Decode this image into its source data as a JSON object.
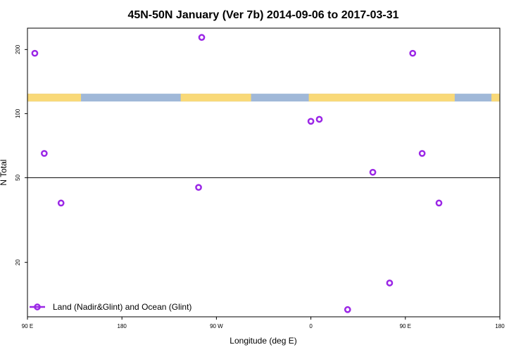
{
  "chart_data": {
    "type": "scatter",
    "title": "45N-50N January (Ver 7b)   2014-09-06 to 2017-03-31",
    "xlabel": "Longitude (deg E)",
    "ylabel": "N Total",
    "ylog": true,
    "xlim": [
      90,
      540
    ],
    "ylim": [
      11.1,
      252
    ],
    "xticks": [
      {
        "value": 90,
        "label": "90 E"
      },
      {
        "value": 180,
        "label": "180"
      },
      {
        "value": 270,
        "label": "90 W"
      },
      {
        "value": 360,
        "label": "0"
      },
      {
        "value": 450,
        "label": "90 E"
      },
      {
        "value": 540,
        "label": "180"
      }
    ],
    "yticks": [
      {
        "value": 20,
        "label": "20"
      },
      {
        "value": 50,
        "label": "50"
      },
      {
        "value": 100,
        "label": "100"
      },
      {
        "value": 200,
        "label": "200"
      }
    ],
    "reference_line": 50,
    "colors": {
      "marker": "#9b27e6",
      "land": "#f9d978",
      "ocean": "#a0b8d8"
    },
    "land_ocean_band": {
      "y_low": 114,
      "y_high": 124,
      "land_intervals": [
        [
          90,
          141
        ],
        [
          236,
          303
        ],
        [
          358,
          497
        ],
        [
          532,
          540
        ]
      ]
    },
    "series": [
      {
        "name": "Land (Nadir&Glint) and Ocean (Glint)",
        "points": [
          {
            "x": 97,
            "y": 192
          },
          {
            "x": 106,
            "y": 65
          },
          {
            "x": 122,
            "y": 38
          },
          {
            "x": 253,
            "y": 45
          },
          {
            "x": 256,
            "y": 228
          },
          {
            "x": 360,
            "y": 92
          },
          {
            "x": 368,
            "y": 94
          },
          {
            "x": 395,
            "y": 12
          },
          {
            "x": 419,
            "y": 53
          },
          {
            "x": 435,
            "y": 16
          },
          {
            "x": 457,
            "y": 192
          },
          {
            "x": 466,
            "y": 65
          },
          {
            "x": 482,
            "y": 38
          }
        ]
      }
    ],
    "legend": {
      "position": "bottom-left"
    }
  }
}
